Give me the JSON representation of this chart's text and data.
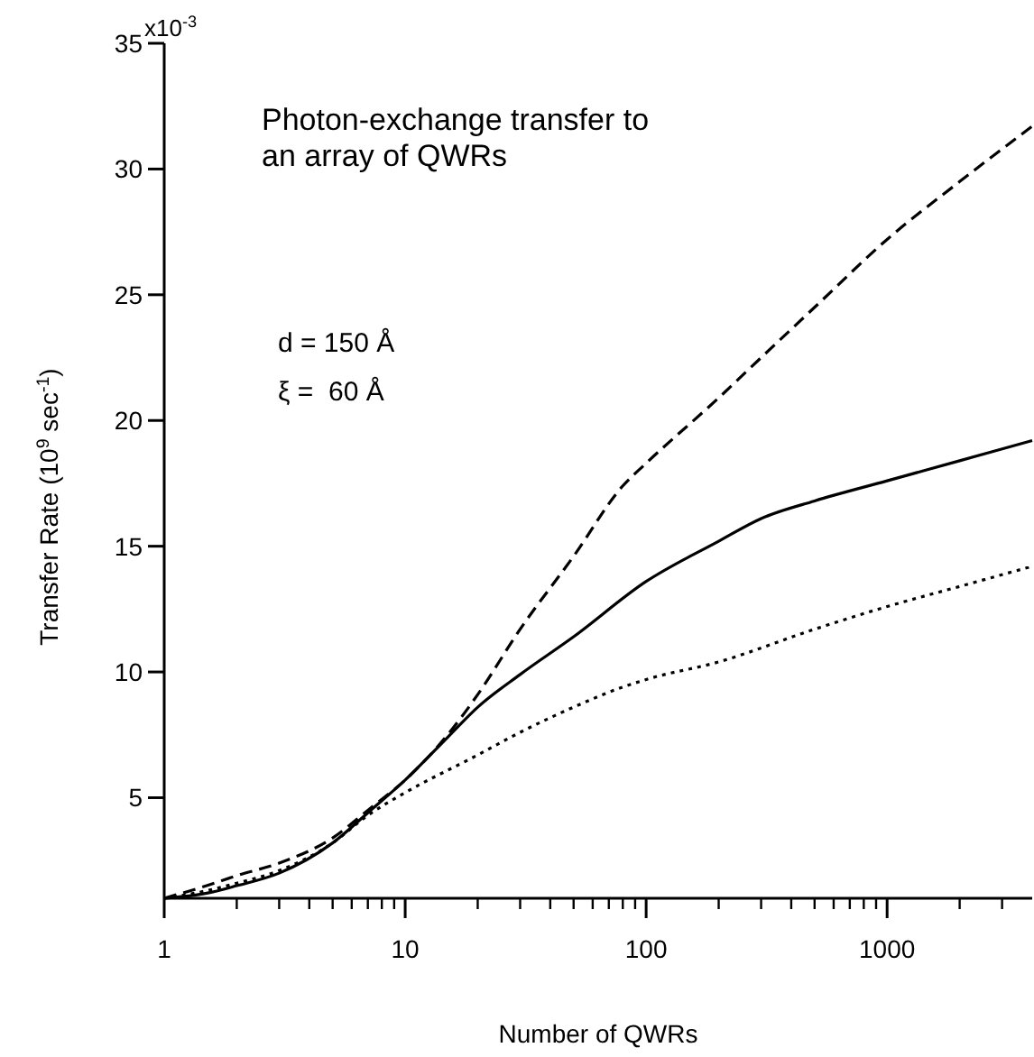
{
  "chart_data": {
    "type": "line",
    "title": "Photon-exchange transfer to\nan array of QWRs",
    "xlabel": "Number of QWRs",
    "ylabel": "Transfer Rate (10$^{9}$ sec$^{-1}$)",
    "log": "x",
    "xlim": [
      1,
      4000
    ],
    "xticks": [
      1,
      10,
      100,
      1000
    ],
    "ylim": [
      1,
      35
    ],
    "yticks": [
      5,
      10,
      15,
      20,
      25,
      30,
      35
    ],
    "grid": false,
    "annotations": [
      "x10$^{-3}$",
      "d = 150 Å",
      "ξ =  60 Å"
    ],
    "series": [
      {
        "color": "#000000",
        "line_style": "solid",
        "x": [
          1,
          1.5,
          2,
          3,
          5,
          7,
          10,
          15,
          20,
          30,
          50,
          100,
          200,
          300,
          500,
          1000,
          2000,
          4000
        ],
        "values": [
          1,
          1.2,
          1.5,
          2,
          3.2,
          4.4,
          5.7,
          7.4,
          8.6,
          9.9,
          11.4,
          13.6,
          15.2,
          16.1,
          16.8,
          17.6,
          18.4,
          19.2
        ]
      },
      {
        "color": "#000000",
        "line_style": "dashed",
        "x": [
          1,
          1.5,
          2,
          3,
          5,
          7,
          10,
          15,
          20,
          30,
          50,
          80,
          100,
          200,
          300,
          500,
          1000,
          2000,
          4000
        ],
        "values": [
          1,
          1.5,
          1.9,
          2.4,
          3.4,
          4.5,
          5.7,
          7.5,
          9.1,
          11.7,
          14.6,
          17.4,
          18.3,
          20.9,
          22.5,
          24.5,
          27.2,
          29.5,
          31.7
        ]
      },
      {
        "color": "#000000",
        "line_style": "dotted",
        "x": [
          1,
          1.5,
          2,
          3,
          5,
          7,
          10,
          20,
          30,
          50,
          80,
          100,
          200,
          500,
          1000,
          2000,
          4000
        ],
        "values": [
          1,
          1.3,
          1.6,
          2.1,
          3.2,
          4.3,
          5.2,
          6.7,
          7.6,
          8.6,
          9.4,
          9.7,
          10.4,
          11.7,
          12.6,
          13.4,
          14.2
        ]
      }
    ]
  }
}
